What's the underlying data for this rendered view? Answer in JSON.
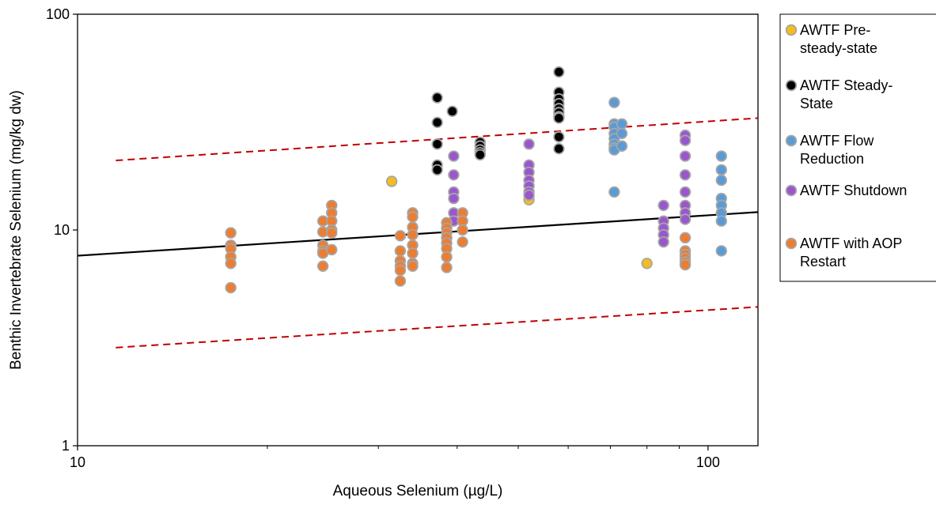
{
  "chart_data": {
    "type": "scatter",
    "xlabel": "Aqueous Selenium (µg/L)",
    "ylabel": "Benthic Invertebrate Selenium (mg/kg dw)",
    "x_scale": "log",
    "y_scale": "log",
    "xlim": [
      10,
      120
    ],
    "ylim": [
      1,
      100
    ],
    "x_ticks": [
      {
        "value": 10,
        "label": "10"
      },
      {
        "value": 100,
        "label": "100"
      }
    ],
    "y_ticks": [
      {
        "value": 1,
        "label": "1"
      },
      {
        "value": 10,
        "label": "10"
      },
      {
        "value": 100,
        "label": "100"
      }
    ],
    "grid": false,
    "legend_position": "right",
    "series": [
      {
        "name": "AWTF Pre-steady-state",
        "legend_lines": [
          "AWTF Pre-",
          "steady-state"
        ],
        "color": "#F5BC1E",
        "edge": "#A6A6A6",
        "points": [
          [
            31.5,
            16.8
          ],
          [
            52,
            13.8
          ],
          [
            80,
            7.0
          ]
        ]
      },
      {
        "name": "AWTF Steady-State",
        "legend_lines": [
          "AWTF Steady-",
          "State"
        ],
        "color": "#000000",
        "edge": "#A6A6A6",
        "points": [
          [
            37.2,
            41
          ],
          [
            37.2,
            31.5
          ],
          [
            37.2,
            25
          ],
          [
            37.2,
            20
          ],
          [
            37.2,
            19
          ],
          [
            39.3,
            35.5
          ],
          [
            43.5,
            25.5
          ],
          [
            43.5,
            24.5
          ],
          [
            43.5,
            23.5
          ],
          [
            43.5,
            22.8
          ],
          [
            43.5,
            22.3
          ],
          [
            58,
            54
          ],
          [
            58,
            43.5
          ],
          [
            58,
            40.5
          ],
          [
            58,
            38.5
          ],
          [
            58,
            36.5
          ],
          [
            58,
            35
          ],
          [
            58,
            33.5
          ],
          [
            58,
            33
          ],
          [
            58,
            27
          ],
          [
            58,
            23.8
          ]
        ]
      },
      {
        "name": "AWTF Flow Reduction",
        "legend_lines": [
          "AWTF Flow",
          "Reduction"
        ],
        "color": "#5B9BD5",
        "edge": "#A6A6A6",
        "points": [
          [
            71,
            39
          ],
          [
            71,
            31
          ],
          [
            71,
            30
          ],
          [
            71,
            28
          ],
          [
            71,
            26.5
          ],
          [
            71,
            25
          ],
          [
            71,
            24
          ],
          [
            71,
            23.5
          ],
          [
            71,
            15
          ],
          [
            73,
            31
          ],
          [
            73,
            28
          ],
          [
            73,
            24.5
          ],
          [
            105,
            22
          ],
          [
            105,
            19
          ],
          [
            105,
            17
          ],
          [
            105,
            14
          ],
          [
            105,
            13
          ],
          [
            105,
            12
          ],
          [
            105,
            11
          ],
          [
            105,
            8
          ]
        ]
      },
      {
        "name": "AWTF Shutdown",
        "legend_lines": [
          "AWTF Shutdown"
        ],
        "color": "#9A57CD",
        "edge": "#A6A6A6",
        "points": [
          [
            39.5,
            22
          ],
          [
            39.5,
            18
          ],
          [
            39.5,
            15
          ],
          [
            39.5,
            14
          ],
          [
            39.5,
            12
          ],
          [
            39.5,
            11
          ],
          [
            52,
            25
          ],
          [
            52,
            20
          ],
          [
            52,
            18.5
          ],
          [
            52,
            17
          ],
          [
            52,
            16
          ],
          [
            52,
            15
          ],
          [
            52,
            14.5
          ],
          [
            85,
            13
          ],
          [
            85,
            11
          ],
          [
            85,
            10.2
          ],
          [
            85,
            9.5
          ],
          [
            85,
            8.8
          ],
          [
            92,
            27.5
          ],
          [
            92,
            26
          ],
          [
            92,
            22
          ],
          [
            92,
            18
          ],
          [
            92,
            15
          ],
          [
            92,
            13
          ],
          [
            92,
            12
          ],
          [
            92,
            11.2
          ]
        ]
      },
      {
        "name": "AWTF with AOP Restart",
        "legend_lines": [
          "AWTF with AOP",
          "Restart"
        ],
        "color": "#ED7D31",
        "edge": "#A6A6A6",
        "points": [
          [
            17.5,
            9.7
          ],
          [
            17.5,
            8.5
          ],
          [
            17.5,
            8.2
          ],
          [
            17.5,
            7.5
          ],
          [
            17.5,
            7.0
          ],
          [
            17.5,
            5.4
          ],
          [
            24.5,
            11
          ],
          [
            24.5,
            9.8
          ],
          [
            24.5,
            8.5
          ],
          [
            24.5,
            8.0
          ],
          [
            24.5,
            7.8
          ],
          [
            24.5,
            6.8
          ],
          [
            25.3,
            13
          ],
          [
            25.3,
            12
          ],
          [
            25.3,
            11
          ],
          [
            25.3,
            10
          ],
          [
            25.3,
            9.7
          ],
          [
            25.3,
            8.1
          ],
          [
            32.5,
            9.4
          ],
          [
            32.5,
            8.0
          ],
          [
            32.5,
            7.2
          ],
          [
            32.5,
            6.8
          ],
          [
            32.5,
            6.5
          ],
          [
            32.5,
            5.8
          ],
          [
            34,
            12
          ],
          [
            34,
            11.5
          ],
          [
            34,
            10.3
          ],
          [
            34,
            9.5
          ],
          [
            34,
            8.5
          ],
          [
            34,
            7.8
          ],
          [
            34,
            7.0
          ],
          [
            34,
            6.8
          ],
          [
            38.5,
            10.8
          ],
          [
            38.5,
            10.2
          ],
          [
            38.5,
            9.7
          ],
          [
            38.5,
            9.2
          ],
          [
            38.5,
            8.7
          ],
          [
            38.5,
            8.2
          ],
          [
            38.5,
            7.5
          ],
          [
            38.5,
            6.7
          ],
          [
            40.8,
            12
          ],
          [
            40.8,
            11
          ],
          [
            40.8,
            10
          ],
          [
            40.8,
            8.8
          ],
          [
            92,
            9.2
          ],
          [
            92,
            8.0
          ],
          [
            92,
            7.7
          ],
          [
            92,
            7.4
          ],
          [
            92,
            7.1
          ],
          [
            92,
            6.9
          ]
        ]
      }
    ],
    "lines": [
      {
        "style": "solid",
        "color": "#000000",
        "points": [
          [
            10,
            7.6
          ],
          [
            120,
            12.1
          ]
        ]
      },
      {
        "style": "dashed",
        "color": "#C00000",
        "points": [
          [
            11.5,
            21
          ],
          [
            120,
            33
          ]
        ]
      },
      {
        "style": "dashed",
        "color": "#C00000",
        "points": [
          [
            11.5,
            2.85
          ],
          [
            120,
            4.4
          ]
        ]
      }
    ]
  }
}
